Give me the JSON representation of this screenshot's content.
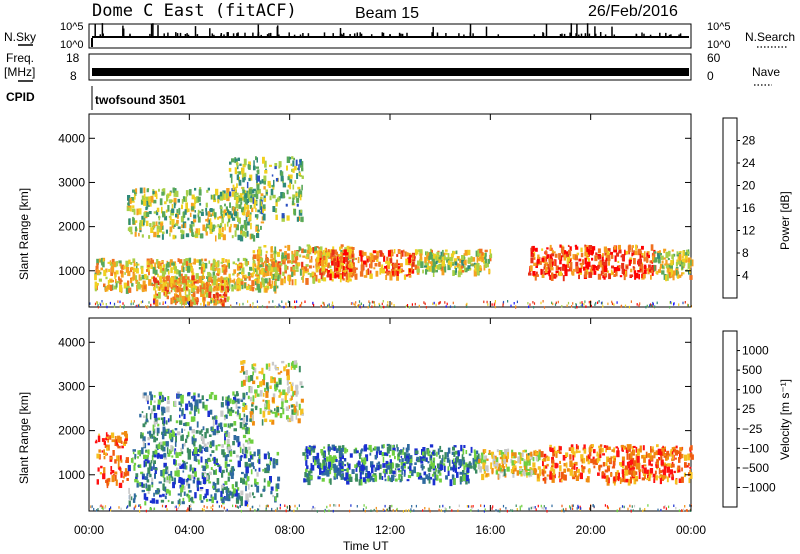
{
  "header": {
    "title": "Dome C East (fitACF)",
    "beam": "Beam 15",
    "date": "26/Feb/2016"
  },
  "strips": {
    "nsky_label": "N.Sky",
    "nsearch_label": "N.Search",
    "noise_top_tick": "10^5",
    "noise_bottom_tick": "10^0",
    "freq_label_line1": "Freq.",
    "freq_label_line2": "[MHz]",
    "freq_ticks": [
      "18",
      "8"
    ],
    "nave_label": "Nave",
    "nave_ticks": [
      "60",
      "0"
    ],
    "cpid_label": "CPID",
    "cpid_value": "twofsound 3501"
  },
  "colors": {
    "power_scale": [
      "#1a1aff",
      "#2a4fc0",
      "#2f8a7a",
      "#58a85a",
      "#a8d048",
      "#f0d020",
      "#f5a020",
      "#f07020",
      "#e83018",
      "#ff0000"
    ],
    "velocity_scale": [
      "#1a2fd0",
      "#2f6aa0",
      "#3a8a60",
      "#6fcf3f",
      "#c8c8c8",
      "#f5c020",
      "#f08a10",
      "#f05a10",
      "#ff1010"
    ]
  },
  "chart_data": [
    {
      "type": "heatmap",
      "name": "power",
      "xlabel": "",
      "ylabel": "Slant Range [km]",
      "x_ticks": [
        "00:00",
        "04:00",
        "08:00",
        "12:00",
        "16:00",
        "20:00",
        "00:00"
      ],
      "x_range_hours": [
        0,
        24
      ],
      "y_ticks": [
        1000,
        2000,
        3000,
        4000
      ],
      "y_range_km": [
        180,
        4550
      ],
      "colorbar": {
        "label": "Power [dB]",
        "ticks": [
          "4",
          "8",
          "12",
          "16",
          "20",
          "24",
          "28"
        ],
        "range": [
          0,
          32
        ]
      },
      "echo_regions": [
        {
          "t_start": 0.2,
          "t_end": 7.5,
          "r_min": 600,
          "r_max": 1300,
          "level": 0.55
        },
        {
          "t_start": 2.5,
          "t_end": 5.5,
          "r_min": 300,
          "r_max": 900,
          "level": 0.65
        },
        {
          "t_start": 6.5,
          "t_end": 10.5,
          "r_min": 800,
          "r_max": 1600,
          "level": 0.6
        },
        {
          "t_start": 9.0,
          "t_end": 13.0,
          "r_min": 900,
          "r_max": 1500,
          "level": 0.75
        },
        {
          "t_start": 13.0,
          "t_end": 16.0,
          "r_min": 1000,
          "r_max": 1500,
          "level": 0.5
        },
        {
          "t_start": 17.5,
          "t_end": 22.5,
          "r_min": 900,
          "r_max": 1600,
          "level": 0.8
        },
        {
          "t_start": 22.5,
          "t_end": 24.0,
          "r_min": 900,
          "r_max": 1500,
          "level": 0.5
        },
        {
          "t_start": 1.5,
          "t_end": 7.0,
          "r_min": 1800,
          "r_max": 2900,
          "level": 0.45
        },
        {
          "t_start": 5.5,
          "t_end": 8.5,
          "r_min": 2200,
          "r_max": 3600,
          "level": 0.4
        }
      ]
    },
    {
      "type": "heatmap",
      "name": "velocity",
      "xlabel": "Time UT",
      "ylabel": "Slant Range [km]",
      "x_ticks": [
        "00:00",
        "04:00",
        "08:00",
        "12:00",
        "16:00",
        "20:00",
        "00:00"
      ],
      "x_range_hours": [
        0,
        24
      ],
      "y_ticks": [
        1000,
        2000,
        3000,
        4000
      ],
      "y_range_km": [
        180,
        4550
      ],
      "colorbar": {
        "label": "Velocity [m s⁻¹]",
        "ticks": [
          "1000",
          "500",
          "100",
          "25",
          "−25",
          "−100",
          "−500",
          "−1000"
        ],
        "range": [
          -1000,
          1000
        ]
      },
      "echo_regions": [
        {
          "t_start": 0.2,
          "t_end": 1.5,
          "r_min": 800,
          "r_max": 2000,
          "level": 0.85
        },
        {
          "t_start": 1.5,
          "t_end": 7.5,
          "r_min": 400,
          "r_max": 1600,
          "level": 0.25
        },
        {
          "t_start": 2.0,
          "t_end": 6.5,
          "r_min": 1600,
          "r_max": 2900,
          "level": 0.3
        },
        {
          "t_start": 6.0,
          "t_end": 8.5,
          "r_min": 2200,
          "r_max": 3600,
          "level": 0.5
        },
        {
          "t_start": 8.5,
          "t_end": 15.5,
          "r_min": 900,
          "r_max": 1700,
          "level": 0.22
        },
        {
          "t_start": 15.5,
          "t_end": 18.0,
          "r_min": 1000,
          "r_max": 1600,
          "level": 0.55
        },
        {
          "t_start": 18.0,
          "t_end": 24.0,
          "r_min": 900,
          "r_max": 1700,
          "level": 0.78
        }
      ]
    }
  ]
}
